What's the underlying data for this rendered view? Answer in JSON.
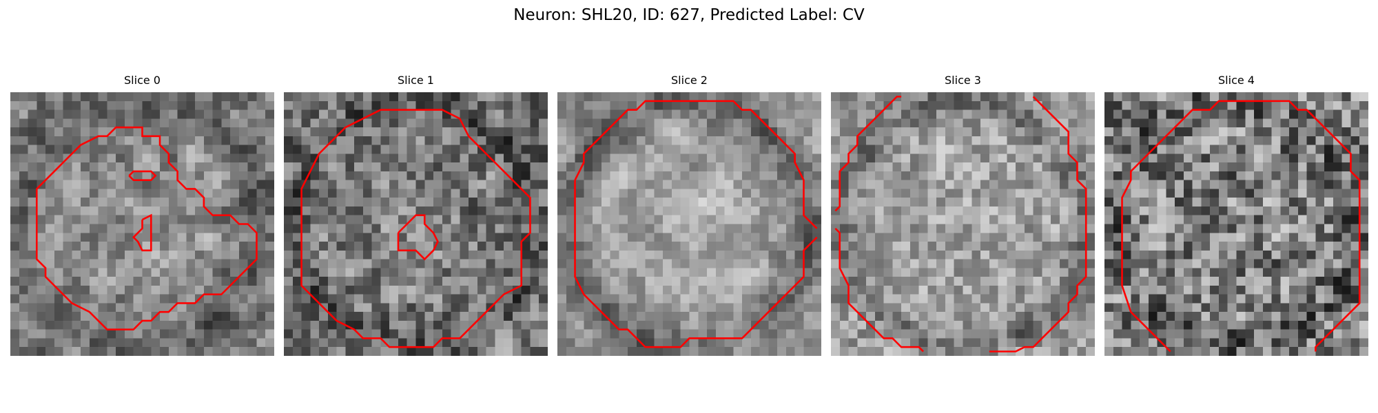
{
  "figure": {
    "title": "Neuron: SHL20, ID: 627, Predicted Label: CV"
  },
  "colors": {
    "background": "#ffffff",
    "contour": "#ff0000",
    "colormap": "gray"
  },
  "panels": [
    {
      "title": "Slice 0",
      "grid_size": 30,
      "pattern": {
        "seed": 11,
        "base": 0.5,
        "spread": 0.34,
        "ring": 0.12,
        "center_bright": 0.06,
        "smooth": 0.55
      },
      "contours": [
        [
          [
            3,
            13
          ],
          [
            3,
            19
          ],
          [
            4,
            20
          ],
          [
            4,
            21
          ],
          [
            5,
            22
          ],
          [
            6,
            23
          ],
          [
            7,
            24
          ],
          [
            9,
            25
          ],
          [
            10,
            26
          ],
          [
            11,
            27
          ],
          [
            14,
            27
          ],
          [
            15,
            26
          ],
          [
            16,
            26
          ],
          [
            17,
            25
          ],
          [
            18,
            25
          ],
          [
            19,
            24
          ],
          [
            21,
            24
          ],
          [
            22,
            23
          ],
          [
            24,
            23
          ],
          [
            25,
            22
          ],
          [
            26,
            21
          ],
          [
            27,
            20
          ],
          [
            28,
            19
          ],
          [
            28,
            16
          ],
          [
            27,
            15
          ],
          [
            26,
            15
          ],
          [
            25,
            14
          ],
          [
            23,
            14
          ],
          [
            22,
            13
          ],
          [
            22,
            12
          ],
          [
            21,
            11
          ],
          [
            20,
            11
          ],
          [
            19,
            10
          ],
          [
            19,
            9
          ],
          [
            18,
            8
          ],
          [
            18,
            7
          ],
          [
            17,
            6
          ],
          [
            17,
            5
          ],
          [
            15,
            5
          ],
          [
            15,
            4
          ],
          [
            12,
            4
          ],
          [
            11,
            5
          ],
          [
            10,
            5
          ],
          [
            8,
            6
          ],
          [
            7,
            7
          ],
          [
            6,
            8
          ],
          [
            5,
            9
          ],
          [
            4,
            10
          ],
          [
            3,
            11
          ],
          [
            3,
            13
          ]
        ],
        [
          [
            13.5,
            9.5
          ],
          [
            14,
            9
          ],
          [
            16,
            9
          ],
          [
            16.5,
            9.5
          ],
          [
            16,
            10
          ],
          [
            14,
            10
          ],
          [
            13.5,
            9.5
          ]
        ],
        [
          [
            15,
            14.5
          ],
          [
            16,
            14
          ],
          [
            16,
            18
          ],
          [
            15,
            18
          ],
          [
            14.5,
            17
          ],
          [
            14,
            16.5
          ],
          [
            15,
            15.5
          ],
          [
            15,
            14.5
          ]
        ]
      ]
    },
    {
      "title": "Slice 1",
      "grid_size": 30,
      "pattern": {
        "seed": 23,
        "base": 0.47,
        "spread": 0.36,
        "ring": 0.14,
        "center_bright": 0.04,
        "smooth": 0.4
      },
      "contours": [
        [
          [
            2,
            12
          ],
          [
            2,
            22
          ],
          [
            3,
            23
          ],
          [
            4,
            24
          ],
          [
            5,
            25
          ],
          [
            6,
            26
          ],
          [
            8,
            27
          ],
          [
            9,
            28
          ],
          [
            11,
            28
          ],
          [
            12,
            29
          ],
          [
            17,
            29
          ],
          [
            18,
            28
          ],
          [
            20,
            28
          ],
          [
            21,
            27
          ],
          [
            22,
            26
          ],
          [
            23,
            25
          ],
          [
            24,
            24
          ],
          [
            25,
            23
          ],
          [
            27,
            22
          ],
          [
            27,
            17
          ],
          [
            28,
            16
          ],
          [
            28,
            12
          ],
          [
            27,
            11
          ],
          [
            26,
            10
          ],
          [
            25,
            9
          ],
          [
            24,
            8
          ],
          [
            23,
            7
          ],
          [
            22,
            6
          ],
          [
            21,
            5
          ],
          [
            20,
            3
          ],
          [
            18,
            2
          ],
          [
            11,
            2
          ],
          [
            9,
            3
          ],
          [
            7,
            4
          ],
          [
            6,
            5
          ],
          [
            5,
            6
          ],
          [
            4,
            7
          ],
          [
            3,
            9
          ],
          [
            2,
            11
          ],
          [
            2,
            12
          ]
        ],
        [
          [
            13,
            16
          ],
          [
            13,
            18
          ],
          [
            14,
            18
          ],
          [
            15,
            18
          ],
          [
            16,
            19
          ],
          [
            17,
            18
          ],
          [
            17.5,
            17
          ],
          [
            17,
            16
          ],
          [
            16,
            15
          ],
          [
            16,
            14
          ],
          [
            15,
            14
          ],
          [
            14,
            15
          ],
          [
            13,
            16
          ]
        ]
      ]
    },
    {
      "title": "Slice 2",
      "grid_size": 30,
      "pattern": {
        "seed": 37,
        "base": 0.58,
        "spread": 0.3,
        "ring": 0.2,
        "center_bright": 0.1,
        "smooth": 0.6
      },
      "contours": [
        [
          [
            2,
            10
          ],
          [
            2,
            21
          ],
          [
            3,
            23
          ],
          [
            4,
            24
          ],
          [
            5,
            25
          ],
          [
            6,
            26
          ],
          [
            7,
            27
          ],
          [
            8,
            27
          ],
          [
            9,
            28
          ],
          [
            10,
            29
          ],
          [
            14,
            29
          ],
          [
            15,
            28
          ],
          [
            21,
            28
          ],
          [
            22,
            27
          ],
          [
            23,
            26
          ],
          [
            24,
            25
          ],
          [
            25,
            24
          ],
          [
            26,
            23
          ],
          [
            27,
            22
          ],
          [
            28,
            21
          ],
          [
            28,
            18
          ],
          [
            29,
            17
          ],
          [
            29.5,
            16.5
          ]
        ],
        [
          [
            29.5,
            15.5
          ],
          [
            29,
            15
          ],
          [
            28,
            14
          ],
          [
            28,
            10
          ],
          [
            27,
            8
          ],
          [
            27,
            7
          ],
          [
            26,
            6
          ],
          [
            25,
            5
          ],
          [
            24,
            4
          ],
          [
            23,
            3
          ],
          [
            22,
            2
          ],
          [
            21,
            2
          ],
          [
            20,
            1
          ],
          [
            10,
            1
          ],
          [
            9,
            2
          ],
          [
            8,
            2
          ],
          [
            7,
            3
          ],
          [
            6,
            4
          ],
          [
            5,
            5
          ],
          [
            4,
            6
          ],
          [
            3,
            7
          ],
          [
            3,
            8
          ],
          [
            2,
            10
          ]
        ]
      ]
    },
    {
      "title": "Slice 3",
      "grid_size": 30,
      "pattern": {
        "seed": 53,
        "base": 0.62,
        "spread": 0.28,
        "ring": 0.16,
        "center_bright": 0.03,
        "smooth": 0.35
      },
      "contours": [
        [
          [
            0.5,
            13.5
          ],
          [
            1,
            13
          ],
          [
            1,
            9
          ],
          [
            2,
            8
          ],
          [
            2,
            7
          ],
          [
            3,
            6
          ],
          [
            3,
            5
          ],
          [
            4,
            4
          ],
          [
            5,
            3
          ],
          [
            6,
            2
          ],
          [
            7,
            1
          ],
          [
            7.5,
            0.5
          ],
          [
            8,
            0.5
          ]
        ],
        [
          [
            23,
            0.5
          ],
          [
            24,
            1.5
          ],
          [
            25,
            2.5
          ],
          [
            26,
            3.5
          ],
          [
            27,
            4.5
          ],
          [
            27,
            7
          ],
          [
            28,
            8
          ],
          [
            28,
            10
          ],
          [
            29,
            11
          ],
          [
            29,
            21
          ],
          [
            28,
            22
          ],
          [
            28,
            23
          ],
          [
            27,
            24
          ],
          [
            27,
            25
          ],
          [
            26,
            26
          ],
          [
            25,
            27
          ],
          [
            24,
            28
          ],
          [
            23,
            29
          ],
          [
            22,
            29
          ],
          [
            21,
            29.5
          ],
          [
            18,
            29.5
          ]
        ],
        [
          [
            0.5,
            15.5
          ],
          [
            1,
            16
          ],
          [
            1,
            20
          ],
          [
            2,
            22
          ],
          [
            2,
            24
          ],
          [
            3,
            25
          ],
          [
            4,
            26
          ],
          [
            5,
            27
          ],
          [
            6,
            28
          ],
          [
            7,
            28
          ],
          [
            8,
            29
          ],
          [
            10,
            29
          ],
          [
            10.5,
            29.5
          ]
        ]
      ]
    },
    {
      "title": "Slice 4",
      "grid_size": 30,
      "pattern": {
        "seed": 71,
        "base": 0.5,
        "spread": 0.38,
        "ring": 0.1,
        "center_bright": 0.0,
        "smooth": 0.2
      },
      "contours": [
        [
          [
            2,
            14
          ],
          [
            2,
            12
          ],
          [
            3,
            10
          ],
          [
            3,
            9
          ],
          [
            4,
            8
          ],
          [
            5,
            7
          ],
          [
            6,
            6
          ],
          [
            7,
            5
          ],
          [
            8,
            4
          ],
          [
            9,
            3
          ],
          [
            10,
            2
          ],
          [
            12,
            2
          ],
          [
            13,
            1
          ],
          [
            21,
            1
          ],
          [
            22,
            2
          ],
          [
            23,
            2
          ],
          [
            24,
            3
          ],
          [
            25,
            4
          ],
          [
            26,
            5
          ],
          [
            27,
            6
          ],
          [
            28,
            7
          ],
          [
            28,
            9
          ],
          [
            29,
            10
          ],
          [
            29,
            24
          ],
          [
            28,
            25
          ],
          [
            27,
            26
          ],
          [
            26,
            27
          ],
          [
            25,
            28
          ],
          [
            24,
            29
          ],
          [
            24,
            29.5
          ]
        ],
        [
          [
            2,
            14
          ],
          [
            2,
            22
          ],
          [
            3,
            25
          ],
          [
            4,
            26
          ],
          [
            5,
            27
          ],
          [
            6,
            28
          ],
          [
            7,
            29
          ],
          [
            7.5,
            29.5
          ]
        ]
      ]
    }
  ]
}
